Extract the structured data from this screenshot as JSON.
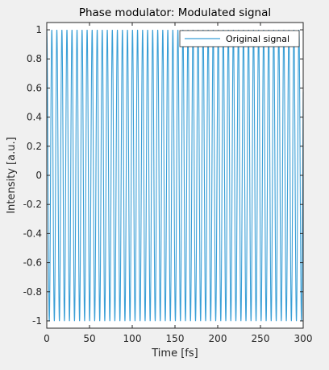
{
  "chart_data": {
    "type": "line",
    "title": "Phase modulator: Modulated signal",
    "xlabel": "Time [fs]",
    "ylabel": "Intensity [a.u.]",
    "xlim": [
      0,
      300
    ],
    "ylim": [
      -1.05,
      1.05
    ],
    "xticks": [
      0,
      50,
      100,
      150,
      200,
      250,
      300
    ],
    "yticks": [
      -1,
      -0.8,
      -0.6,
      -0.4,
      -0.2,
      0,
      0.2,
      0.4,
      0.6,
      0.8,
      1
    ],
    "xtick_labels": [
      "0",
      "50",
      "100",
      "150",
      "200",
      "250",
      "300"
    ],
    "ytick_labels": [
      "-1",
      "-0.8",
      "-0.6",
      "-0.4",
      "-0.2",
      "0",
      "0.2",
      "0.4",
      "0.6",
      "0.8",
      "1"
    ],
    "grid": false,
    "legend_position": "top-right",
    "series": [
      {
        "name": "Original signal",
        "color": "#3a9fd6",
        "function": "cos",
        "amplitude": 1,
        "period_fs": 5.9,
        "x_start": 0,
        "x_end": 300
      }
    ]
  }
}
